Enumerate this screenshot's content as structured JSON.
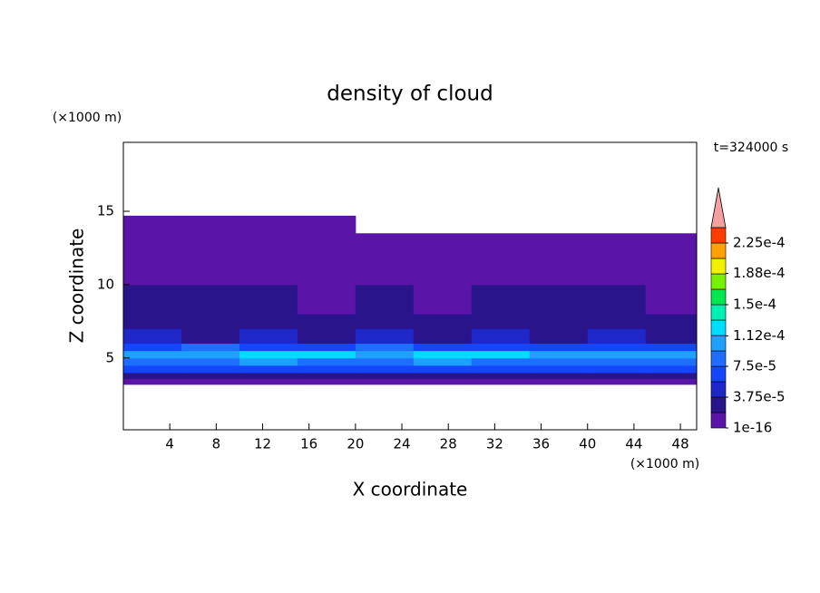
{
  "chart_data": {
    "type": "contour",
    "title": "density of cloud",
    "x_label": "X coordinate",
    "y_label": "Z coordinate",
    "x_unit": "(×1000 m)",
    "y_unit": "(×1000 m)",
    "time_label": "t=324000 s",
    "xlim": [
      0,
      49.4
    ],
    "ylim": [
      0.1,
      19.7
    ],
    "xticks": [
      4,
      8,
      12,
      16,
      20,
      24,
      28,
      32,
      36,
      40,
      44,
      48
    ],
    "yticks": [
      5,
      10,
      15
    ],
    "x_edges": [
      0,
      5,
      10,
      15,
      20,
      25,
      30,
      35,
      40,
      45,
      50
    ],
    "y_edges": [
      3.2,
      3.6,
      4,
      4.5,
      5,
      5.5,
      6,
      7,
      8,
      10,
      12.5,
      13.5,
      14.7
    ],
    "z": [
      [
        1e-05,
        1e-05,
        1e-05,
        1e-05,
        1e-05,
        1e-05,
        1e-05,
        1e-05,
        1e-05,
        1e-05
      ],
      [
        3e-05,
        3e-05,
        3e-05,
        3e-05,
        3e-05,
        3e-05,
        3e-05,
        3e-05,
        3e-05,
        3e-05
      ],
      [
        6e-05,
        6e-05,
        6e-05,
        6e-05,
        6e-05,
        6e-05,
        6e-05,
        6e-05,
        6e-05,
        6e-05
      ],
      [
        9e-05,
        9e-05,
        0.00011,
        9e-05,
        9e-05,
        0.00011,
        9e-05,
        9e-05,
        9e-05,
        9e-05
      ],
      [
        9.5e-05,
        0.0001,
        0.000115,
        0.000115,
        0.0001,
        0.000115,
        0.000115,
        9.5e-05,
        0.0001,
        0.00011
      ],
      [
        7e-05,
        9e-05,
        7e-05,
        7e-05,
        9e-05,
        7e-05,
        7e-05,
        7e-05,
        7e-05,
        7e-05
      ],
      [
        5e-05,
        3e-05,
        5e-05,
        3e-05,
        5e-05,
        3e-05,
        5e-05,
        3e-05,
        5e-05,
        3e-05
      ],
      [
        3e-05,
        3e-05,
        3e-05,
        3e-05,
        3e-05,
        3e-05,
        3e-05,
        3e-05,
        3e-05,
        3e-05
      ],
      [
        2e-05,
        2e-05,
        2e-05,
        1e-05,
        2e-05,
        1e-05,
        2e-05,
        2e-05,
        2e-05,
        1e-05
      ],
      [
        1e-05,
        1e-05,
        1e-05,
        1e-05,
        1e-05,
        1e-05,
        1e-05,
        1e-05,
        1e-05,
        1e-05
      ],
      [
        1e-05,
        1e-05,
        1e-05,
        1e-05,
        1e-05,
        1e-05,
        1e-05,
        1e-05,
        1e-05,
        1e-05
      ],
      [
        1e-05,
        1e-05,
        1e-05,
        1e-05,
        null,
        null,
        null,
        null,
        null,
        null
      ]
    ],
    "levels": [
      0,
      1.875e-05,
      3.75e-05,
      5.625e-05,
      7.5e-05,
      9.375e-05,
      0.0001125,
      0.00013125,
      0.00015,
      0.00016875,
      0.0001875,
      0.00020625,
      0.000225,
      0.00024375
    ],
    "colors": [
      "#5a14a8",
      "#2a148c",
      "#1e28c8",
      "#1446ff",
      "#1e6eff",
      "#1ea0ff",
      "#00dcff",
      "#00f0b4",
      "#00e650",
      "#78f000",
      "#f0f000",
      "#ffa000",
      "#ff3c00"
    ],
    "extend_color": "#f5a0a0",
    "colorbar_ticks": [
      {
        "value": 1e-16,
        "label": "1e-16"
      },
      {
        "value": 3.75e-05,
        "label": "3.75e-5"
      },
      {
        "value": 7.5e-05,
        "label": "7.5e-5"
      },
      {
        "value": 0.000112,
        "label": "1.12e-4"
      },
      {
        "value": 0.00015,
        "label": "1.5e-4"
      },
      {
        "value": 0.000188,
        "label": "1.88e-4"
      },
      {
        "value": 0.000225,
        "label": "2.25e-4"
      }
    ]
  }
}
